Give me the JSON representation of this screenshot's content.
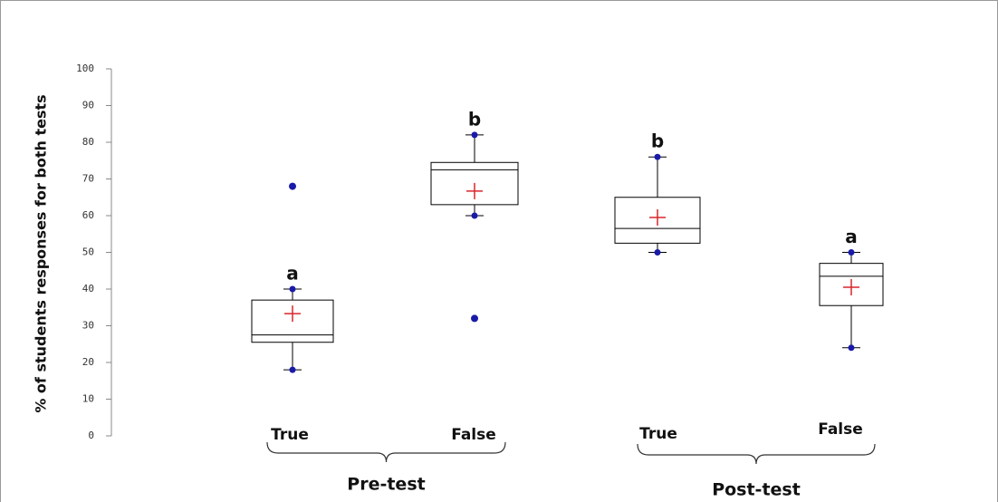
{
  "chart_data": {
    "type": "box",
    "y_label": "% of students responses for both tests",
    "categories": [
      "True",
      "False",
      "True",
      "False"
    ],
    "groups": [
      "Pre-test",
      "Post-test"
    ],
    "ylim": [
      0,
      100
    ],
    "yticks": [
      0,
      10,
      20,
      30,
      40,
      50,
      60,
      70,
      80,
      90,
      100
    ],
    "box_color": "#000000",
    "mean_color": "#d9262c",
    "point_color": "#1a1aa8",
    "boxes": [
      {
        "min": 18,
        "q1": 25.5,
        "median": 27.5,
        "q3": 37,
        "max": 40,
        "mean": 33.3,
        "outliers": [
          68
        ],
        "label": "a"
      },
      {
        "min": 60,
        "q1": 63,
        "median": 72.5,
        "q3": 74.5,
        "max": 82,
        "mean": 66.7,
        "outliers": [
          32
        ],
        "label": "b"
      },
      {
        "min": 50,
        "q1": 52.5,
        "median": 56.5,
        "q3": 65,
        "max": 76,
        "mean": 59.5,
        "outliers": [],
        "label": "b"
      },
      {
        "min": 24,
        "q1": 35.5,
        "median": 43.5,
        "q3": 47,
        "max": 50,
        "mean": 40.5,
        "outliers": [],
        "label": "a"
      }
    ]
  }
}
